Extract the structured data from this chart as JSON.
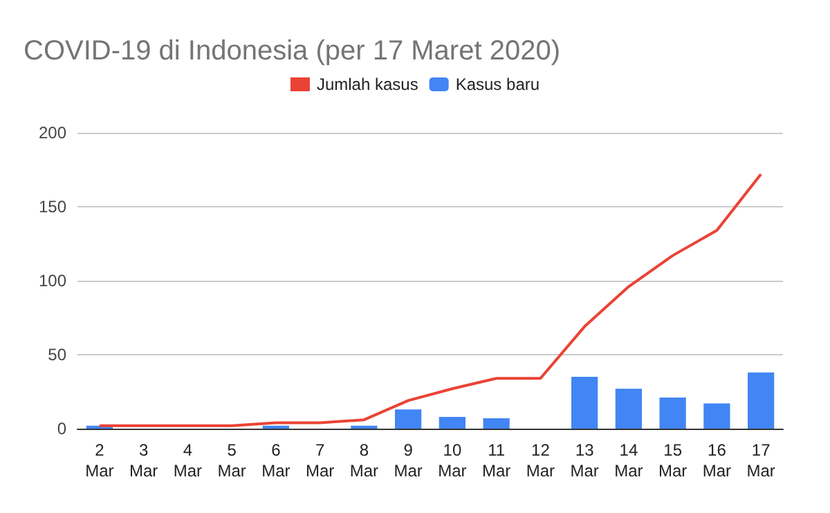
{
  "chart_data": {
    "type": "bar",
    "title": "COVID-19 di Indonesia (per 17 Maret 2020)",
    "categories": [
      "2 Mar",
      "3 Mar",
      "4 Mar",
      "5 Mar",
      "6 Mar",
      "7 Mar",
      "8 Mar",
      "9 Mar",
      "10 Mar",
      "11 Mar",
      "12 Mar",
      "13 Mar",
      "14 Mar",
      "15 Mar",
      "16 Mar",
      "17 Mar"
    ],
    "series": [
      {
        "name": "Jumlah kasus",
        "type": "line",
        "color": "#ea4335",
        "values": [
          2,
          2,
          2,
          2,
          4,
          4,
          6,
          19,
          27,
          34,
          34,
          69,
          96,
          117,
          134,
          172
        ]
      },
      {
        "name": "Kasus baru",
        "color": "#4285f4",
        "values": [
          2,
          0,
          0,
          0,
          2,
          0,
          2,
          13,
          8,
          7,
          0,
          35,
          27,
          21,
          17,
          38
        ]
      }
    ],
    "ylim": [
      0,
      200
    ],
    "yticks": [
      0,
      50,
      100,
      150,
      200
    ],
    "grid": "y",
    "legend": "top",
    "marker": "none"
  }
}
